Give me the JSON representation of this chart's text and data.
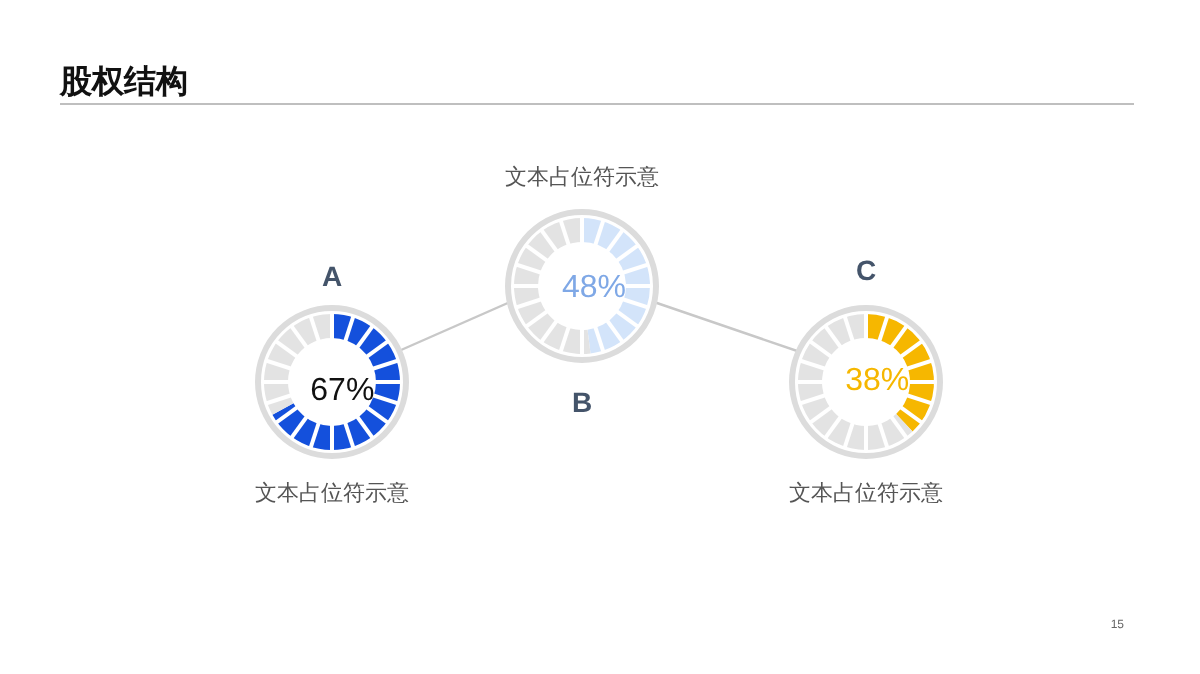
{
  "chart_data": [
    {
      "type": "other",
      "title": "股权结构",
      "annotations": [
        "15"
      ]
    },
    {
      "type": "donut",
      "title": "A",
      "categories": [
        null,
        null
      ],
      "values": [
        67,
        33
      ],
      "colors": [
        "#1450dc",
        "#e3e3e3"
      ],
      "value_labels": [
        "67%",
        null
      ],
      "annotations": [
        "文本占位符示意"
      ]
    },
    {
      "type": "donut",
      "title": "B",
      "categories": [
        null,
        null
      ],
      "values": [
        48,
        52
      ],
      "colors": [
        "#d3e4fa",
        "#e3e3e3"
      ],
      "value_labels": [
        "48%",
        null
      ],
      "annotations": [
        "文本占位符示意"
      ]
    },
    {
      "type": "donut",
      "title": "C",
      "categories": [
        null,
        null
      ],
      "values": [
        38,
        62
      ],
      "colors": [
        "#f6b700",
        "#e3e3e3"
      ],
      "value_labels": [
        "38%",
        null
      ],
      "annotations": [
        "文本占位符示意"
      ]
    }
  ]
}
